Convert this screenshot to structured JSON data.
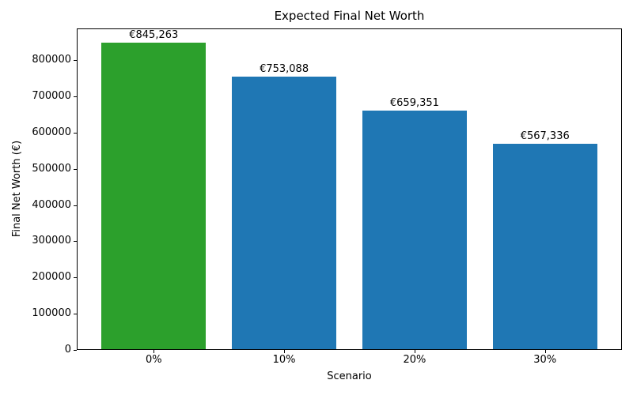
{
  "chart_data": {
    "type": "bar",
    "title": "Expected Final Net Worth",
    "xlabel": "Scenario",
    "ylabel": "Final Net Worth (€)",
    "categories": [
      "0%",
      "10%",
      "20%",
      "30%"
    ],
    "values": [
      845263,
      753088,
      659351,
      567336
    ],
    "value_labels": [
      "€845,263",
      "€753,088",
      "€659,351",
      "€567,336"
    ],
    "bar_colors": [
      "#2ca02c",
      "#1f77b4",
      "#1f77b4",
      "#1f77b4"
    ],
    "yticks": [
      0,
      100000,
      200000,
      300000,
      400000,
      500000,
      600000,
      700000,
      800000
    ],
    "ylim": [
      0,
      887526
    ],
    "xlim": [
      -0.59,
      3.59
    ],
    "bar_width": 0.8,
    "grid": false,
    "legend": null,
    "spine_color": "#000000",
    "background_color": "#ffffff"
  }
}
